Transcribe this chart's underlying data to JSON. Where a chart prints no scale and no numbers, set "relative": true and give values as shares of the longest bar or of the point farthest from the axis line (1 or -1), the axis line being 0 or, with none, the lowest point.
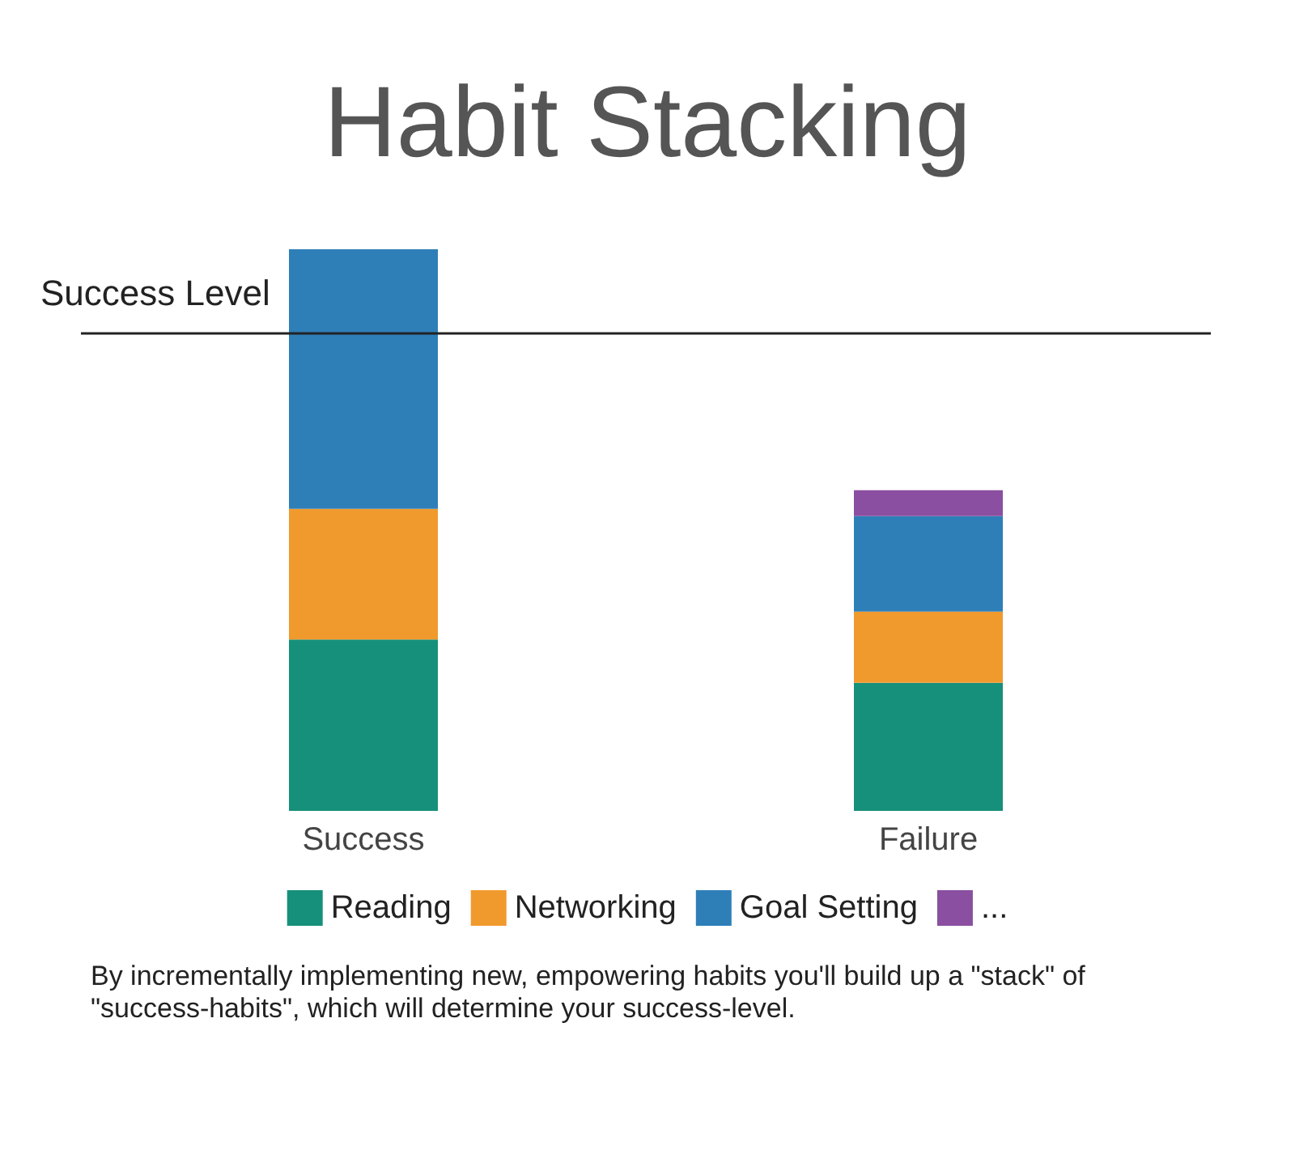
{
  "chart_data": {
    "type": "bar",
    "title": "Habit Stacking",
    "categories": [
      "Success",
      "Failure"
    ],
    "stacked": true,
    "relative": true,
    "series": [
      {
        "name": "Reading",
        "color": "#16907a",
        "values": [
          0.305,
          0.228
        ]
      },
      {
        "name": "Networking",
        "color": "#f09a2e",
        "values": [
          0.233,
          0.127
        ]
      },
      {
        "name": "Goal Setting",
        "color": "#2e7fb8",
        "values": [
          0.462,
          0.17
        ]
      },
      {
        "name": "...",
        "color": "#8a4fa0",
        "values": [
          null,
          0.046
        ]
      }
    ],
    "ref_lines": [
      {
        "axis": "y",
        "value": 0.853,
        "label": "Success Level",
        "color": "#222222"
      }
    ],
    "legend": "bottom",
    "annotations": [
      "By incrementally implementing new, empowering habits you'll build up a \"stack\" of \"success-habits\", which will determine your success-level."
    ]
  }
}
